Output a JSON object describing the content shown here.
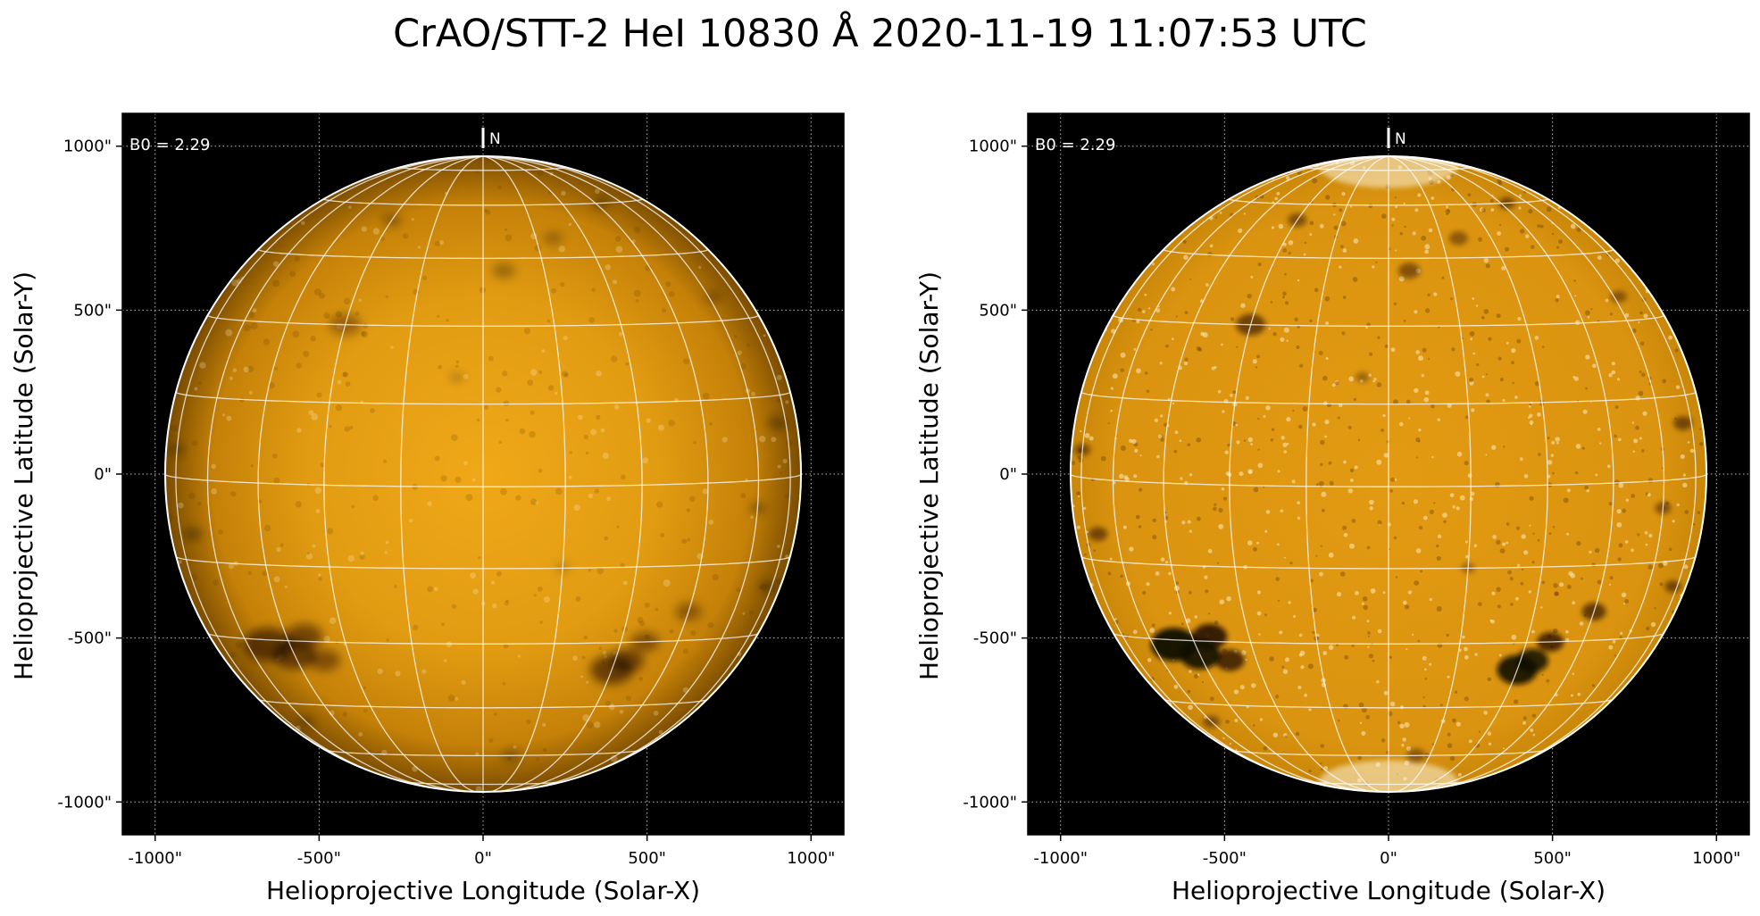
{
  "title": "CrAO/STT-2 HeI 10830 Å 2020-11-19 11:07:53 UTC",
  "colors": {
    "background": "#000000",
    "disk_mid": "#e8a010",
    "disk_limb": "#7a4c00",
    "grid": "#ffffff",
    "coord_grid": "#bbbbbb"
  },
  "panels": [
    {
      "name": "left",
      "variant": "smooth",
      "xlabel": "Helioprojective Longitude (Solar-X)",
      "ylabel": "Helioprojective Latitude (Solar-Y)",
      "annotation": "B0 = 2.29",
      "north_label": "N",
      "x_ticks": [
        {
          "value": -1000,
          "label": "-1000\""
        },
        {
          "value": -500,
          "label": "-500\""
        },
        {
          "value": 0,
          "label": "0\""
        },
        {
          "value": 500,
          "label": "500\""
        },
        {
          "value": 1000,
          "label": "1000\""
        }
      ],
      "y_ticks": [
        {
          "value": 1000,
          "label": "1000\""
        },
        {
          "value": 500,
          "label": "500\""
        },
        {
          "value": 0,
          "label": "0\""
        },
        {
          "value": -500,
          "label": "-500\""
        },
        {
          "value": -1000,
          "label": "-1000\""
        }
      ]
    },
    {
      "name": "right",
      "variant": "enhanced",
      "xlabel": "Helioprojective Longitude (Solar-X)",
      "ylabel": "Helioprojective Latitude (Solar-Y)",
      "annotation": "B0 = 2.29",
      "north_label": "N",
      "x_ticks": [
        {
          "value": -1000,
          "label": "-1000\""
        },
        {
          "value": -500,
          "label": "-500\""
        },
        {
          "value": 0,
          "label": "0\""
        },
        {
          "value": 500,
          "label": "500\""
        },
        {
          "value": 1000,
          "label": "1000\""
        }
      ],
      "y_ticks": [
        {
          "value": 1000,
          "label": "1000\""
        },
        {
          "value": 500,
          "label": "500\""
        },
        {
          "value": 0,
          "label": "0\""
        },
        {
          "value": -500,
          "label": "-500\""
        },
        {
          "value": -1000,
          "label": "-1000\""
        }
      ]
    }
  ],
  "chart_data": {
    "type": "heatmap",
    "x_range": [
      -1100,
      1100
    ],
    "y_range": [
      -1100,
      1100
    ],
    "solar_radius_arcsec": 970,
    "b0_deg": 2.29,
    "grid_spacing_deg": 15
  }
}
